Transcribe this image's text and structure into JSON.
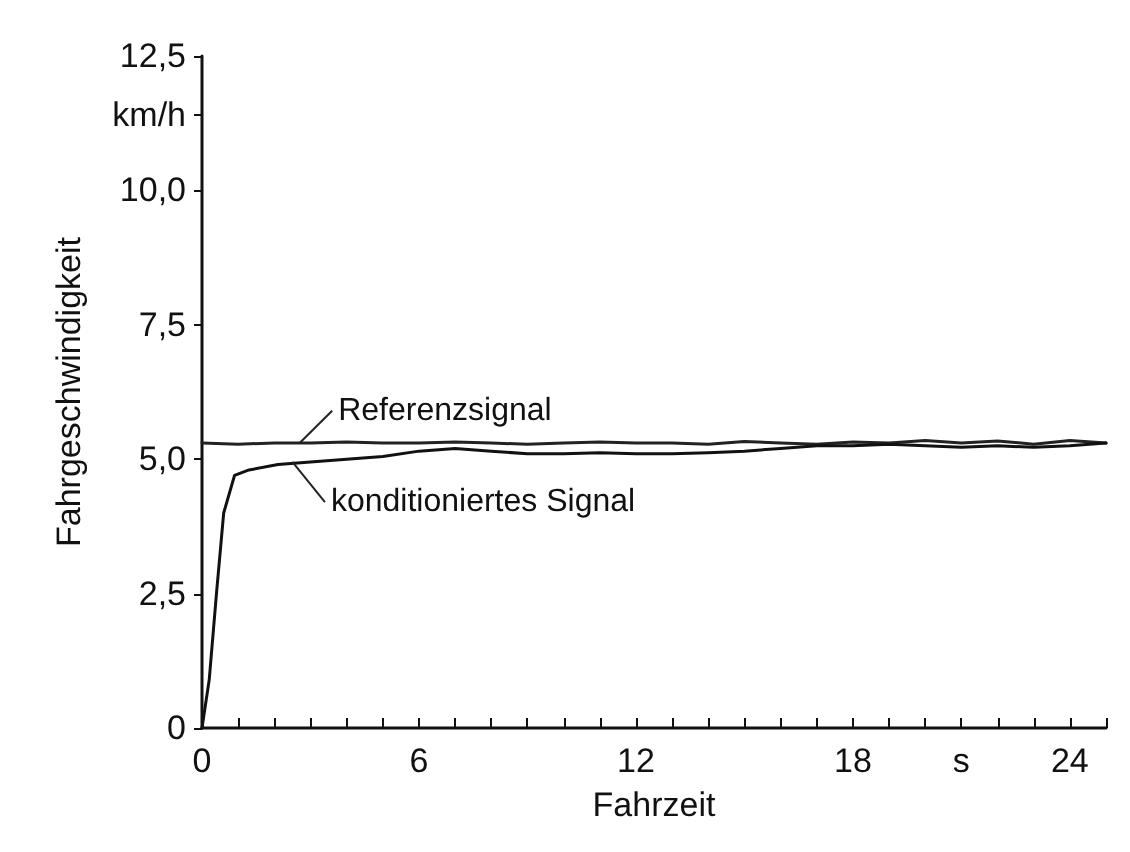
{
  "chart_data": {
    "type": "line",
    "xlabel": "Fahrzeit",
    "ylabel": "Fahrgeschwindigkeit",
    "xlim": [
      0,
      25
    ],
    "ylim": [
      0,
      12.5
    ],
    "xticks": [
      0,
      {
        "value": 1,
        "label": null
      },
      {
        "value": 2,
        "label": null
      },
      {
        "value": 3,
        "label": null
      },
      {
        "value": 4,
        "label": null
      },
      {
        "value": 5,
        "label": null
      },
      6,
      {
        "value": 7,
        "label": null
      },
      {
        "value": 8,
        "label": null
      },
      {
        "value": 9,
        "label": null
      },
      {
        "value": 10,
        "label": null
      },
      {
        "value": 11,
        "label": null
      },
      12,
      {
        "value": 13,
        "label": null
      },
      {
        "value": 14,
        "label": null
      },
      {
        "value": 15,
        "label": null
      },
      {
        "value": 16,
        "label": null
      },
      {
        "value": 17,
        "label": null
      },
      18,
      {
        "value": 19,
        "label": null
      },
      {
        "value": 20,
        "label": null
      },
      {
        "value": 21,
        "label": "s"
      },
      {
        "value": 22,
        "label": null
      },
      {
        "value": 23,
        "label": null
      },
      24,
      {
        "value": 25,
        "label": null
      }
    ],
    "yticks": [
      0,
      {
        "value": 2.5,
        "label": "2,5"
      },
      {
        "value": 5,
        "label": "5,0"
      },
      {
        "value": 7.5,
        "label": "7,5"
      },
      {
        "value": 10,
        "label": "10,0"
      },
      {
        "value": 11.4,
        "label": "km/h"
      },
      {
        "value": 12.5,
        "label": "12,5"
      }
    ],
    "grid": false,
    "marker": "none",
    "line_style": "solid",
    "series": [
      {
        "color": "#222222",
        "x": [
          0,
          1,
          2,
          3,
          4,
          5,
          6,
          7,
          8,
          9,
          10,
          11,
          12,
          13,
          14,
          15,
          16,
          17,
          18,
          19,
          20,
          21,
          22,
          23,
          24,
          25
        ],
        "values": [
          5.3,
          5.28,
          5.3,
          5.3,
          5.32,
          5.3,
          5.3,
          5.32,
          5.3,
          5.28,
          5.3,
          5.32,
          5.3,
          5.3,
          5.28,
          5.33,
          5.3,
          5.28,
          5.32,
          5.3,
          5.35,
          5.3,
          5.34,
          5.28,
          5.35,
          5.3
        ]
      },
      {
        "color": "#111111",
        "x": [
          0,
          0.2,
          0.4,
          0.6,
          0.9,
          1.3,
          2.1,
          3,
          4,
          5,
          6,
          7,
          8,
          9,
          10,
          11,
          12,
          13,
          14,
          15,
          16,
          17,
          18,
          19,
          20,
          21,
          22,
          23,
          24,
          25
        ],
        "values": [
          0,
          0.9,
          2.5,
          4.0,
          4.7,
          4.8,
          4.9,
          4.95,
          5.0,
          5.05,
          5.15,
          5.2,
          5.15,
          5.1,
          5.1,
          5.12,
          5.1,
          5.1,
          5.12,
          5.15,
          5.2,
          5.25,
          5.25,
          5.28,
          5.25,
          5.22,
          5.25,
          5.22,
          5.25,
          5.3
        ]
      }
    ],
    "annotations": [
      {
        "text": "Referenzsignal",
        "x": 2.7,
        "y": 5.3
      },
      {
        "text": "konditioniertes Signal",
        "x": 2.5,
        "y": 4.95
      }
    ]
  }
}
